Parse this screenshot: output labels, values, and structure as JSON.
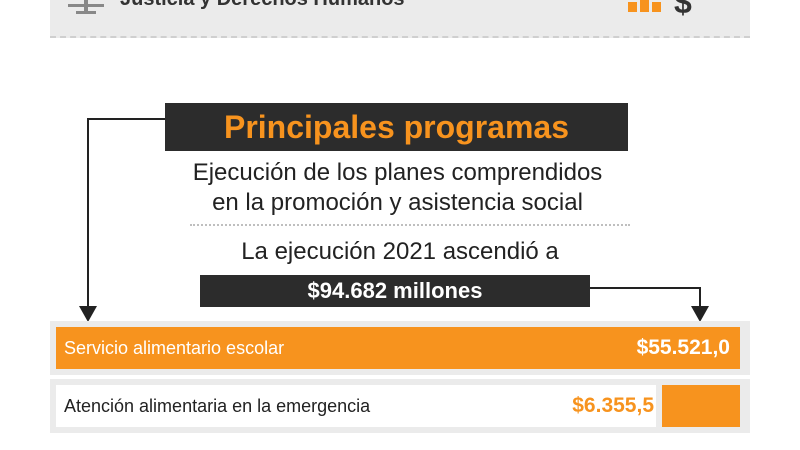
{
  "header": {
    "title": "Justicia y Derechos Humanos",
    "currency_symbol": "$"
  },
  "title": "Principales programas",
  "subtitle_line1": "Ejecución de los planes comprendidos",
  "subtitle_line2": "en la promoción y asistencia social",
  "execution_text": "La ejecución 2021 ascendió a",
  "execution_total": "$94.682 millones",
  "colors": {
    "accent": "#f7931e",
    "dark": "#2c2c2c",
    "band": "#ebebeb"
  },
  "chart_data": {
    "type": "bar",
    "orientation": "horizontal",
    "unit": "millones de $",
    "total": 94682,
    "categories": [
      "Servicio alimentario escolar",
      "Atención alimentaria en la emergencia"
    ],
    "values": [
      55521.0,
      6355.5
    ],
    "value_labels": [
      "$55.521,0",
      "$6.355,5"
    ]
  }
}
